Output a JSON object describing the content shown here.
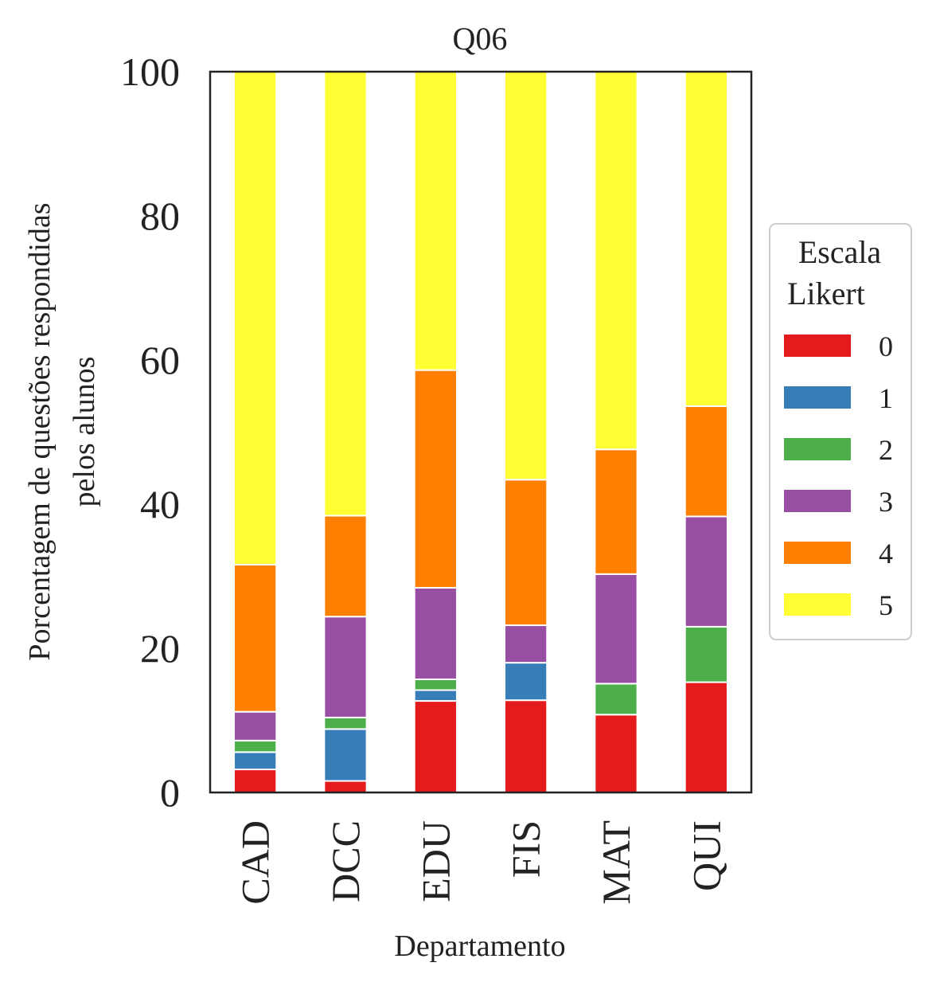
{
  "chart_data": {
    "type": "bar",
    "stacked": true,
    "title": "Q06",
    "xlabel": "Departamento",
    "ylabel_lines": [
      "Porcentagem de questões respondidas",
      "pelos alunos"
    ],
    "ylim": [
      0,
      100
    ],
    "yticks": [
      0,
      20,
      40,
      60,
      80,
      100
    ],
    "categories": [
      "CAD",
      "DCC",
      "EDU",
      "FIS",
      "MAT",
      "QUI"
    ],
    "legend": {
      "title_lines": [
        "Escala",
        "Likert"
      ],
      "placement": "right"
    },
    "series": [
      {
        "name": "0",
        "color": "#e41a1c",
        "values": [
          3.2,
          1.6,
          12.7,
          12.8,
          10.8,
          15.3
        ]
      },
      {
        "name": "1",
        "color": "#377eb8",
        "values": [
          2.4,
          7.2,
          1.5,
          5.2,
          0.0,
          0.0
        ]
      },
      {
        "name": "2",
        "color": "#4daf4a",
        "values": [
          1.6,
          1.6,
          1.5,
          0.0,
          4.3,
          7.7
        ]
      },
      {
        "name": "3",
        "color": "#984ea3",
        "values": [
          4.0,
          14.0,
          12.7,
          5.2,
          15.2,
          15.3
        ]
      },
      {
        "name": "4",
        "color": "#ff7f00",
        "values": [
          20.4,
          14.0,
          30.2,
          20.2,
          17.3,
          15.3
        ]
      },
      {
        "name": "5",
        "color": "#ffff33",
        "values": [
          68.4,
          61.6,
          41.4,
          56.6,
          52.4,
          46.4
        ]
      }
    ]
  }
}
